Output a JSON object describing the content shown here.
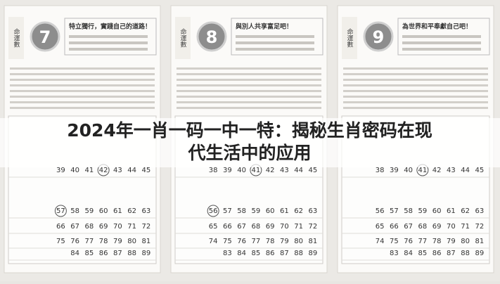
{
  "banner": {
    "line1": "2024年一肖一码一中一特：揭秘生肖密码在现",
    "line2": "代生活中的应用"
  },
  "pages": [
    {
      "label": "命運數",
      "number": "7",
      "heading": "特立獨行，實踐自己的道路！",
      "circled": [
        42,
        57
      ],
      "rows": [
        [
          39,
          40,
          41,
          42,
          43,
          44,
          45
        ],
        [
          57,
          58,
          59,
          60,
          61,
          62,
          63
        ],
        [
          66,
          67,
          68,
          69,
          70,
          71,
          72
        ],
        [
          75,
          76,
          77,
          78,
          79,
          80,
          81
        ],
        [
          84,
          85,
          86,
          87,
          88,
          89
        ]
      ]
    },
    {
      "label": "命運數",
      "number": "8",
      "heading": "與別人共享富足吧！",
      "circled": [
        41,
        56
      ],
      "rows": [
        [
          38,
          39,
          40,
          41,
          42,
          43,
          44,
          45
        ],
        [
          56,
          57,
          58,
          59,
          60,
          61,
          62,
          63
        ],
        [
          65,
          66,
          67,
          68,
          69,
          70,
          71,
          72
        ],
        [
          74,
          75,
          76,
          77,
          78,
          79,
          80,
          81
        ],
        [
          83,
          84,
          85,
          86,
          87,
          88,
          89
        ]
      ]
    },
    {
      "label": "命運數",
      "number": "9",
      "heading": "為世界和平奉獻自己吧！",
      "circled": [
        41
      ],
      "rows": [
        [
          38,
          39,
          40,
          41,
          42,
          43,
          44,
          45
        ],
        [
          56,
          57,
          58,
          59,
          60,
          61,
          62,
          63
        ],
        [
          65,
          66,
          67,
          68,
          69,
          70,
          71,
          72
        ],
        [
          74,
          75,
          76,
          77,
          78,
          79,
          80,
          81
        ],
        [
          83,
          84,
          85,
          86,
          87,
          88,
          89
        ]
      ]
    }
  ]
}
